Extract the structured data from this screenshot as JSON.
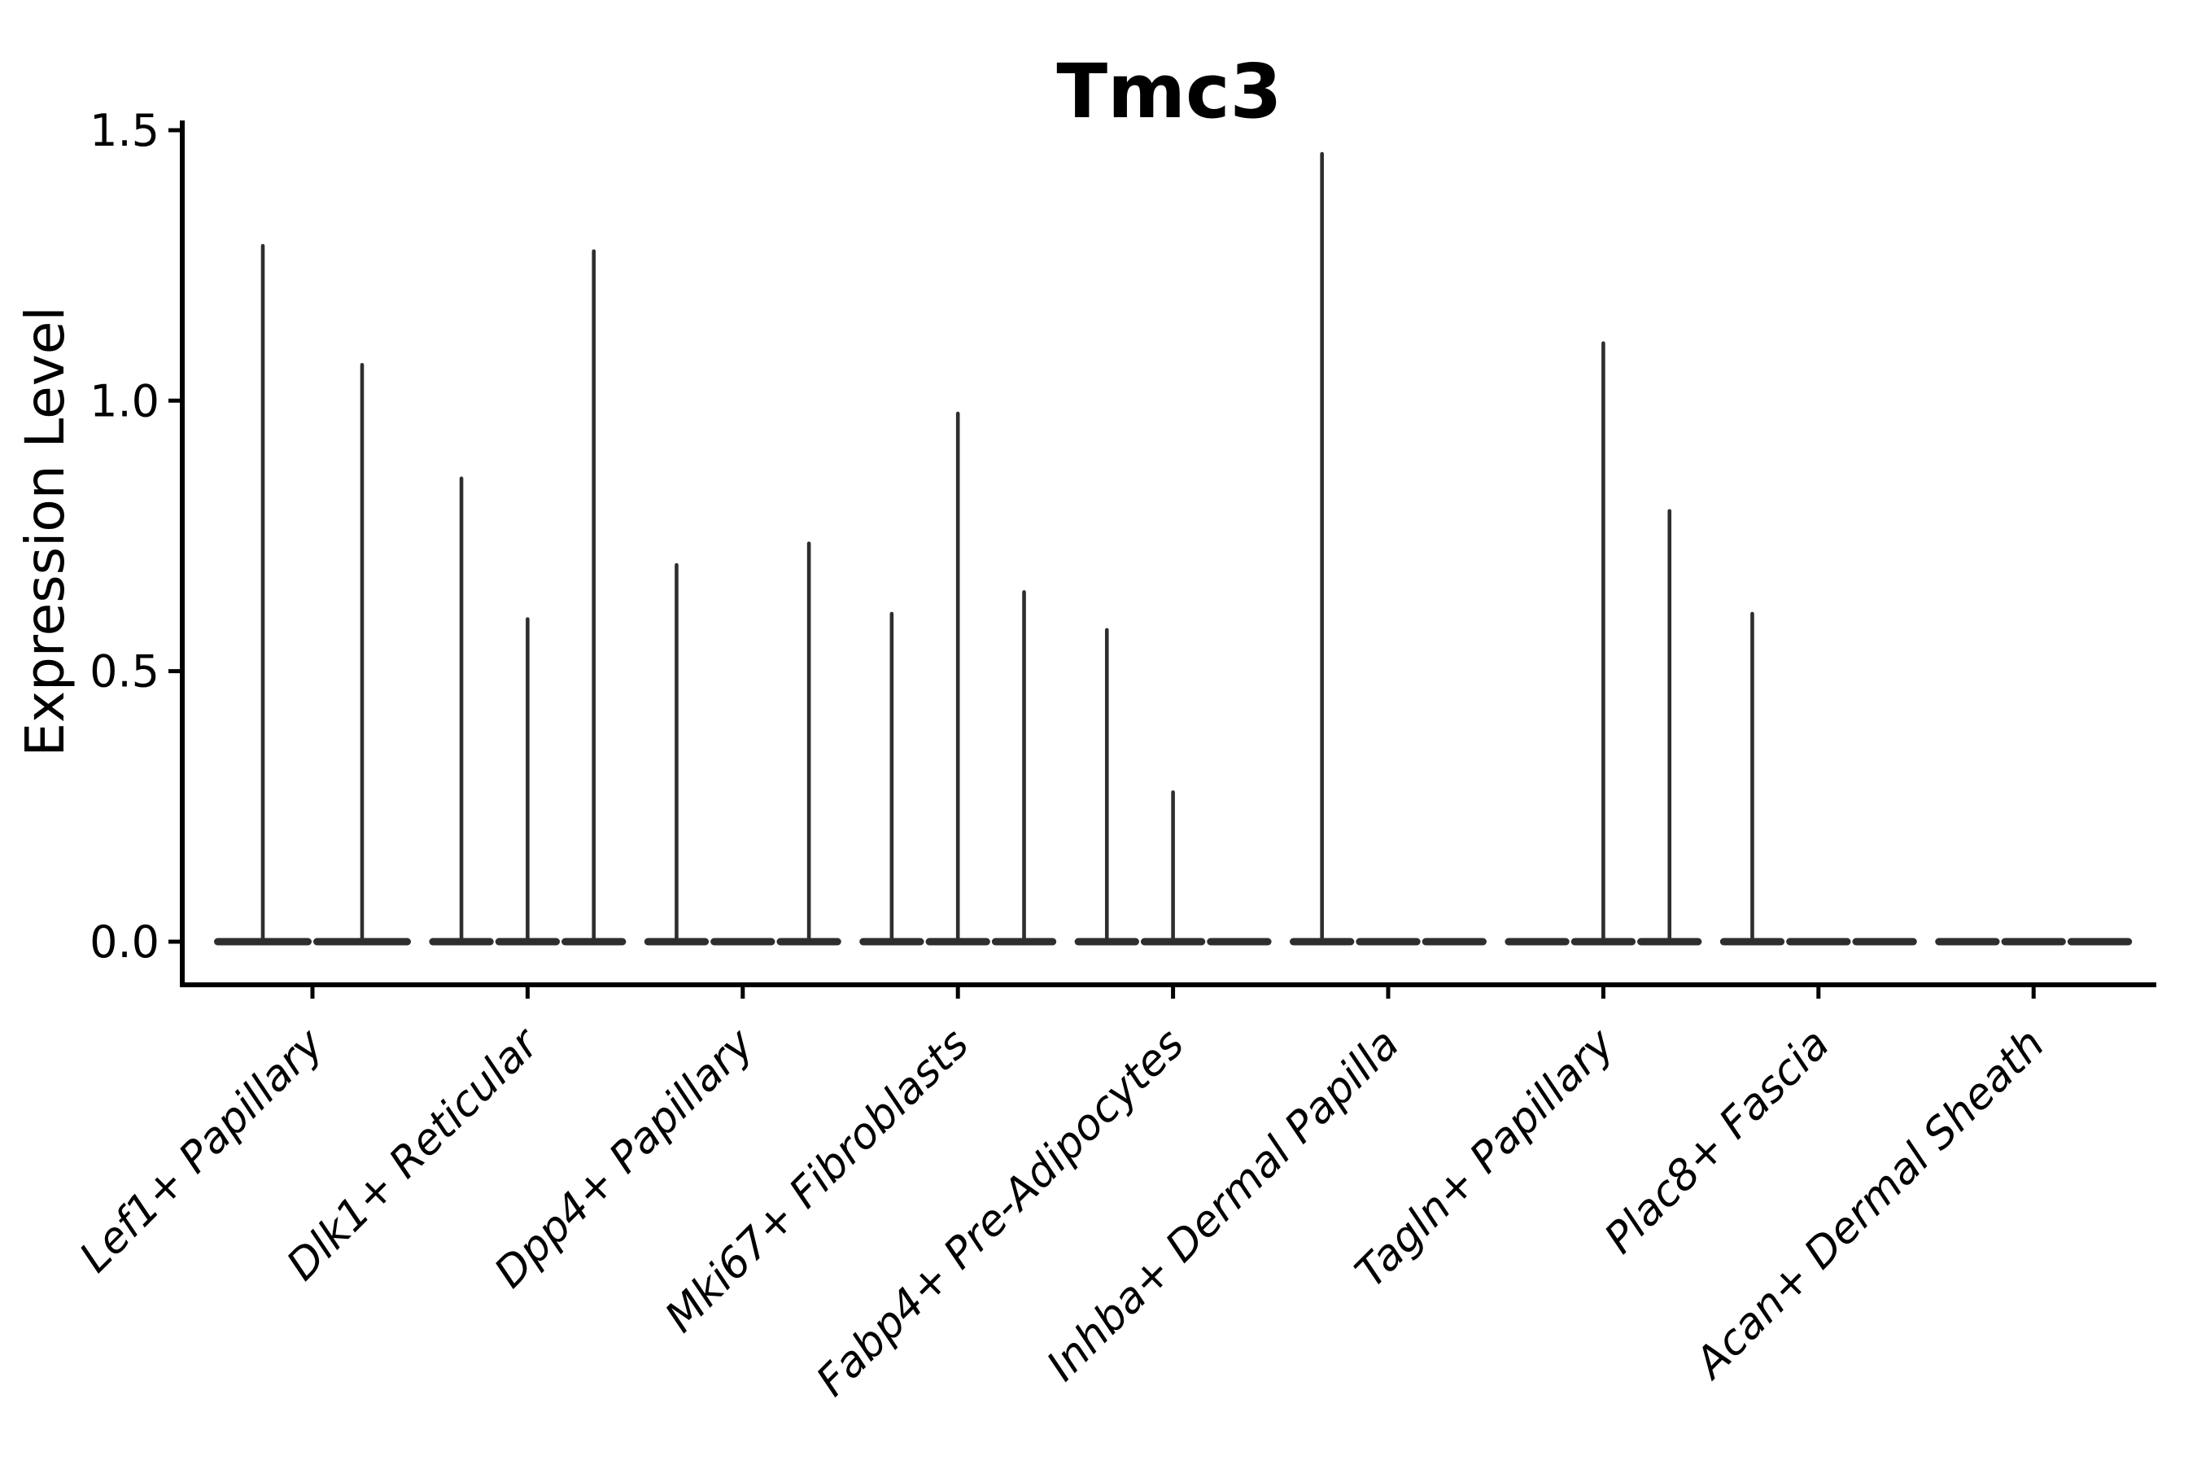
{
  "chart_data": {
    "type": "violin",
    "title": "Tmc3",
    "ylabel": "Expression Level",
    "xlabel": "",
    "ylim": [
      0,
      1.5
    ],
    "grid": false,
    "legend": false,
    "ytick_labels": [
      "0.0",
      "0.5",
      "1.0",
      "1.5"
    ],
    "ytick_values": [
      0.0,
      0.5,
      1.0,
      1.5
    ],
    "colors": {
      "violin": "#2e2e2e",
      "axis": "#000000",
      "background": "#ffffff"
    },
    "note": "Each category shows 2-3 thin spike violins; value 0 means a flat violin collapsed on the baseline",
    "groups": [
      {
        "label": "Lef1+ Papillary",
        "violin_maxima": [
          1.29,
          1.07
        ]
      },
      {
        "label": "Dlk1+ Reticular",
        "violin_maxima": [
          0.86,
          0.6,
          1.28
        ]
      },
      {
        "label": "Dpp4+ Papillary",
        "violin_maxima": [
          0.7,
          0,
          0.74
        ]
      },
      {
        "label": "Mki67+ Fibroblasts",
        "violin_maxima": [
          0.61,
          0.98,
          0.65
        ]
      },
      {
        "label": "Fabp4+ Pre-Adipocytes",
        "violin_maxima": [
          0.58,
          0.28,
          0
        ]
      },
      {
        "label": "Inhba+ Dermal Papilla",
        "violin_maxima": [
          1.46,
          0,
          0
        ]
      },
      {
        "label": "Tagln+ Papillary",
        "violin_maxima": [
          0,
          1.11,
          0.8
        ]
      },
      {
        "label": "Plac8+ Fascia",
        "violin_maxima": [
          0.61,
          0,
          0
        ]
      },
      {
        "label": "Acan+ Dermal Sheath",
        "violin_maxima": [
          0,
          0,
          0
        ]
      }
    ]
  }
}
